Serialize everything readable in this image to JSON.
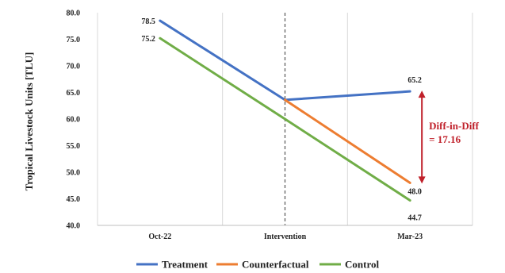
{
  "chart_data": {
    "type": "line",
    "ylabel": "Tropical Livestock Units [TLU]",
    "xlabel": "",
    "categories": [
      "Oct-22",
      "Intervention",
      "Mar-23"
    ],
    "ylim": [
      40.0,
      80.0
    ],
    "yticks": [
      "40.0",
      "45.0",
      "50.0",
      "55.0",
      "60.0",
      "65.0",
      "70.0",
      "75.0",
      "80.0"
    ],
    "grid": "vertical",
    "legend_position": "bottom",
    "series": [
      {
        "name": "Treatment",
        "color": "#4472c4",
        "values": [
          78.5,
          63.6,
          65.2
        ],
        "labels": [
          "78.5",
          "",
          "65.2"
        ]
      },
      {
        "name": "Counterfactual",
        "color": "#ed7d31",
        "values": [
          null,
          63.6,
          48.0
        ],
        "labels": [
          "",
          "",
          "48.0"
        ]
      },
      {
        "name": "Control",
        "color": "#70ad47",
        "values": [
          75.2,
          60.0,
          44.7
        ],
        "labels": [
          "75.2",
          "",
          "44.7"
        ]
      }
    ],
    "intervention_marker": {
      "category": "Intervention",
      "style": "dashed"
    },
    "annotation": {
      "lines": [
        "Diff-in-Diff",
        "= 17.16"
      ],
      "color": "#c0202a",
      "arrow_from": 65.2,
      "arrow_to": 48.0
    }
  }
}
